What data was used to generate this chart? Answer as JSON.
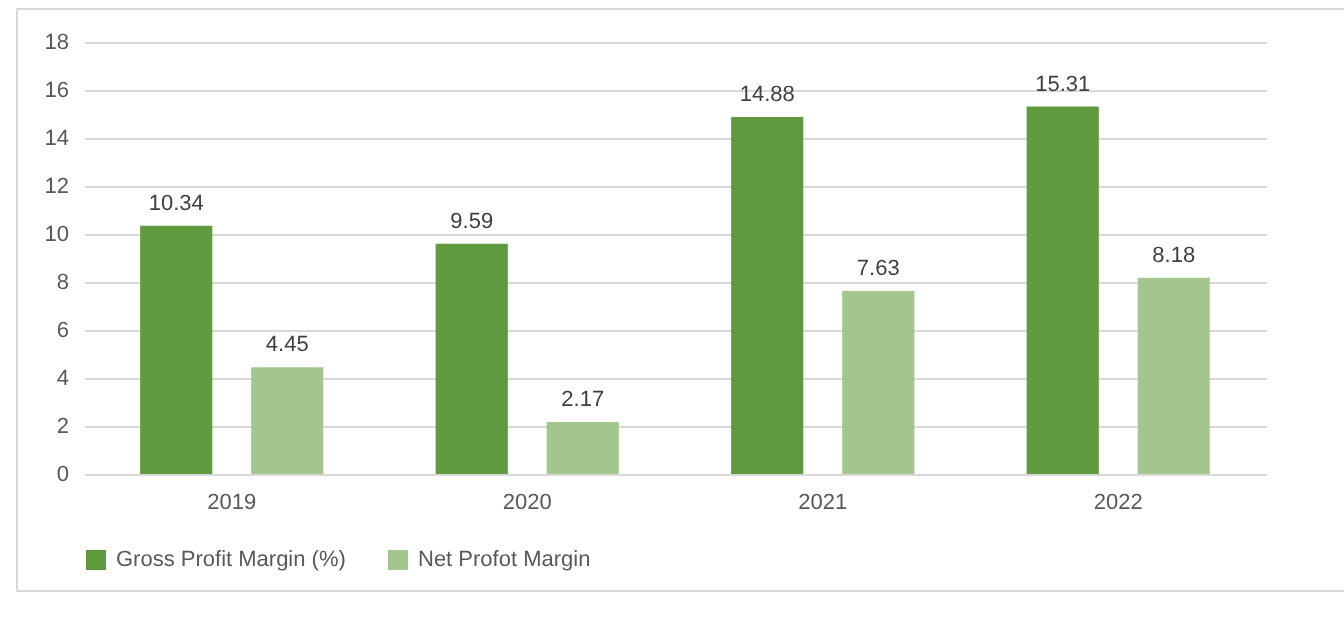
{
  "chart_data": {
    "type": "bar",
    "categories": [
      "2019",
      "2020",
      "2021",
      "2022"
    ],
    "series": [
      {
        "name": "Gross Profit Margin (%)",
        "color": "#5f9a3e",
        "values": [
          10.34,
          9.59,
          14.88,
          15.31
        ]
      },
      {
        "name": "Net Profot Margin",
        "color": "#a3c68e",
        "values": [
          4.45,
          2.17,
          7.63,
          8.18
        ]
      }
    ],
    "ylim": [
      0,
      18
    ],
    "yticks": [
      0,
      2,
      4,
      6,
      8,
      10,
      12,
      14,
      16,
      18
    ],
    "grid": "y",
    "legend": "bottom",
    "data_labels": true
  }
}
